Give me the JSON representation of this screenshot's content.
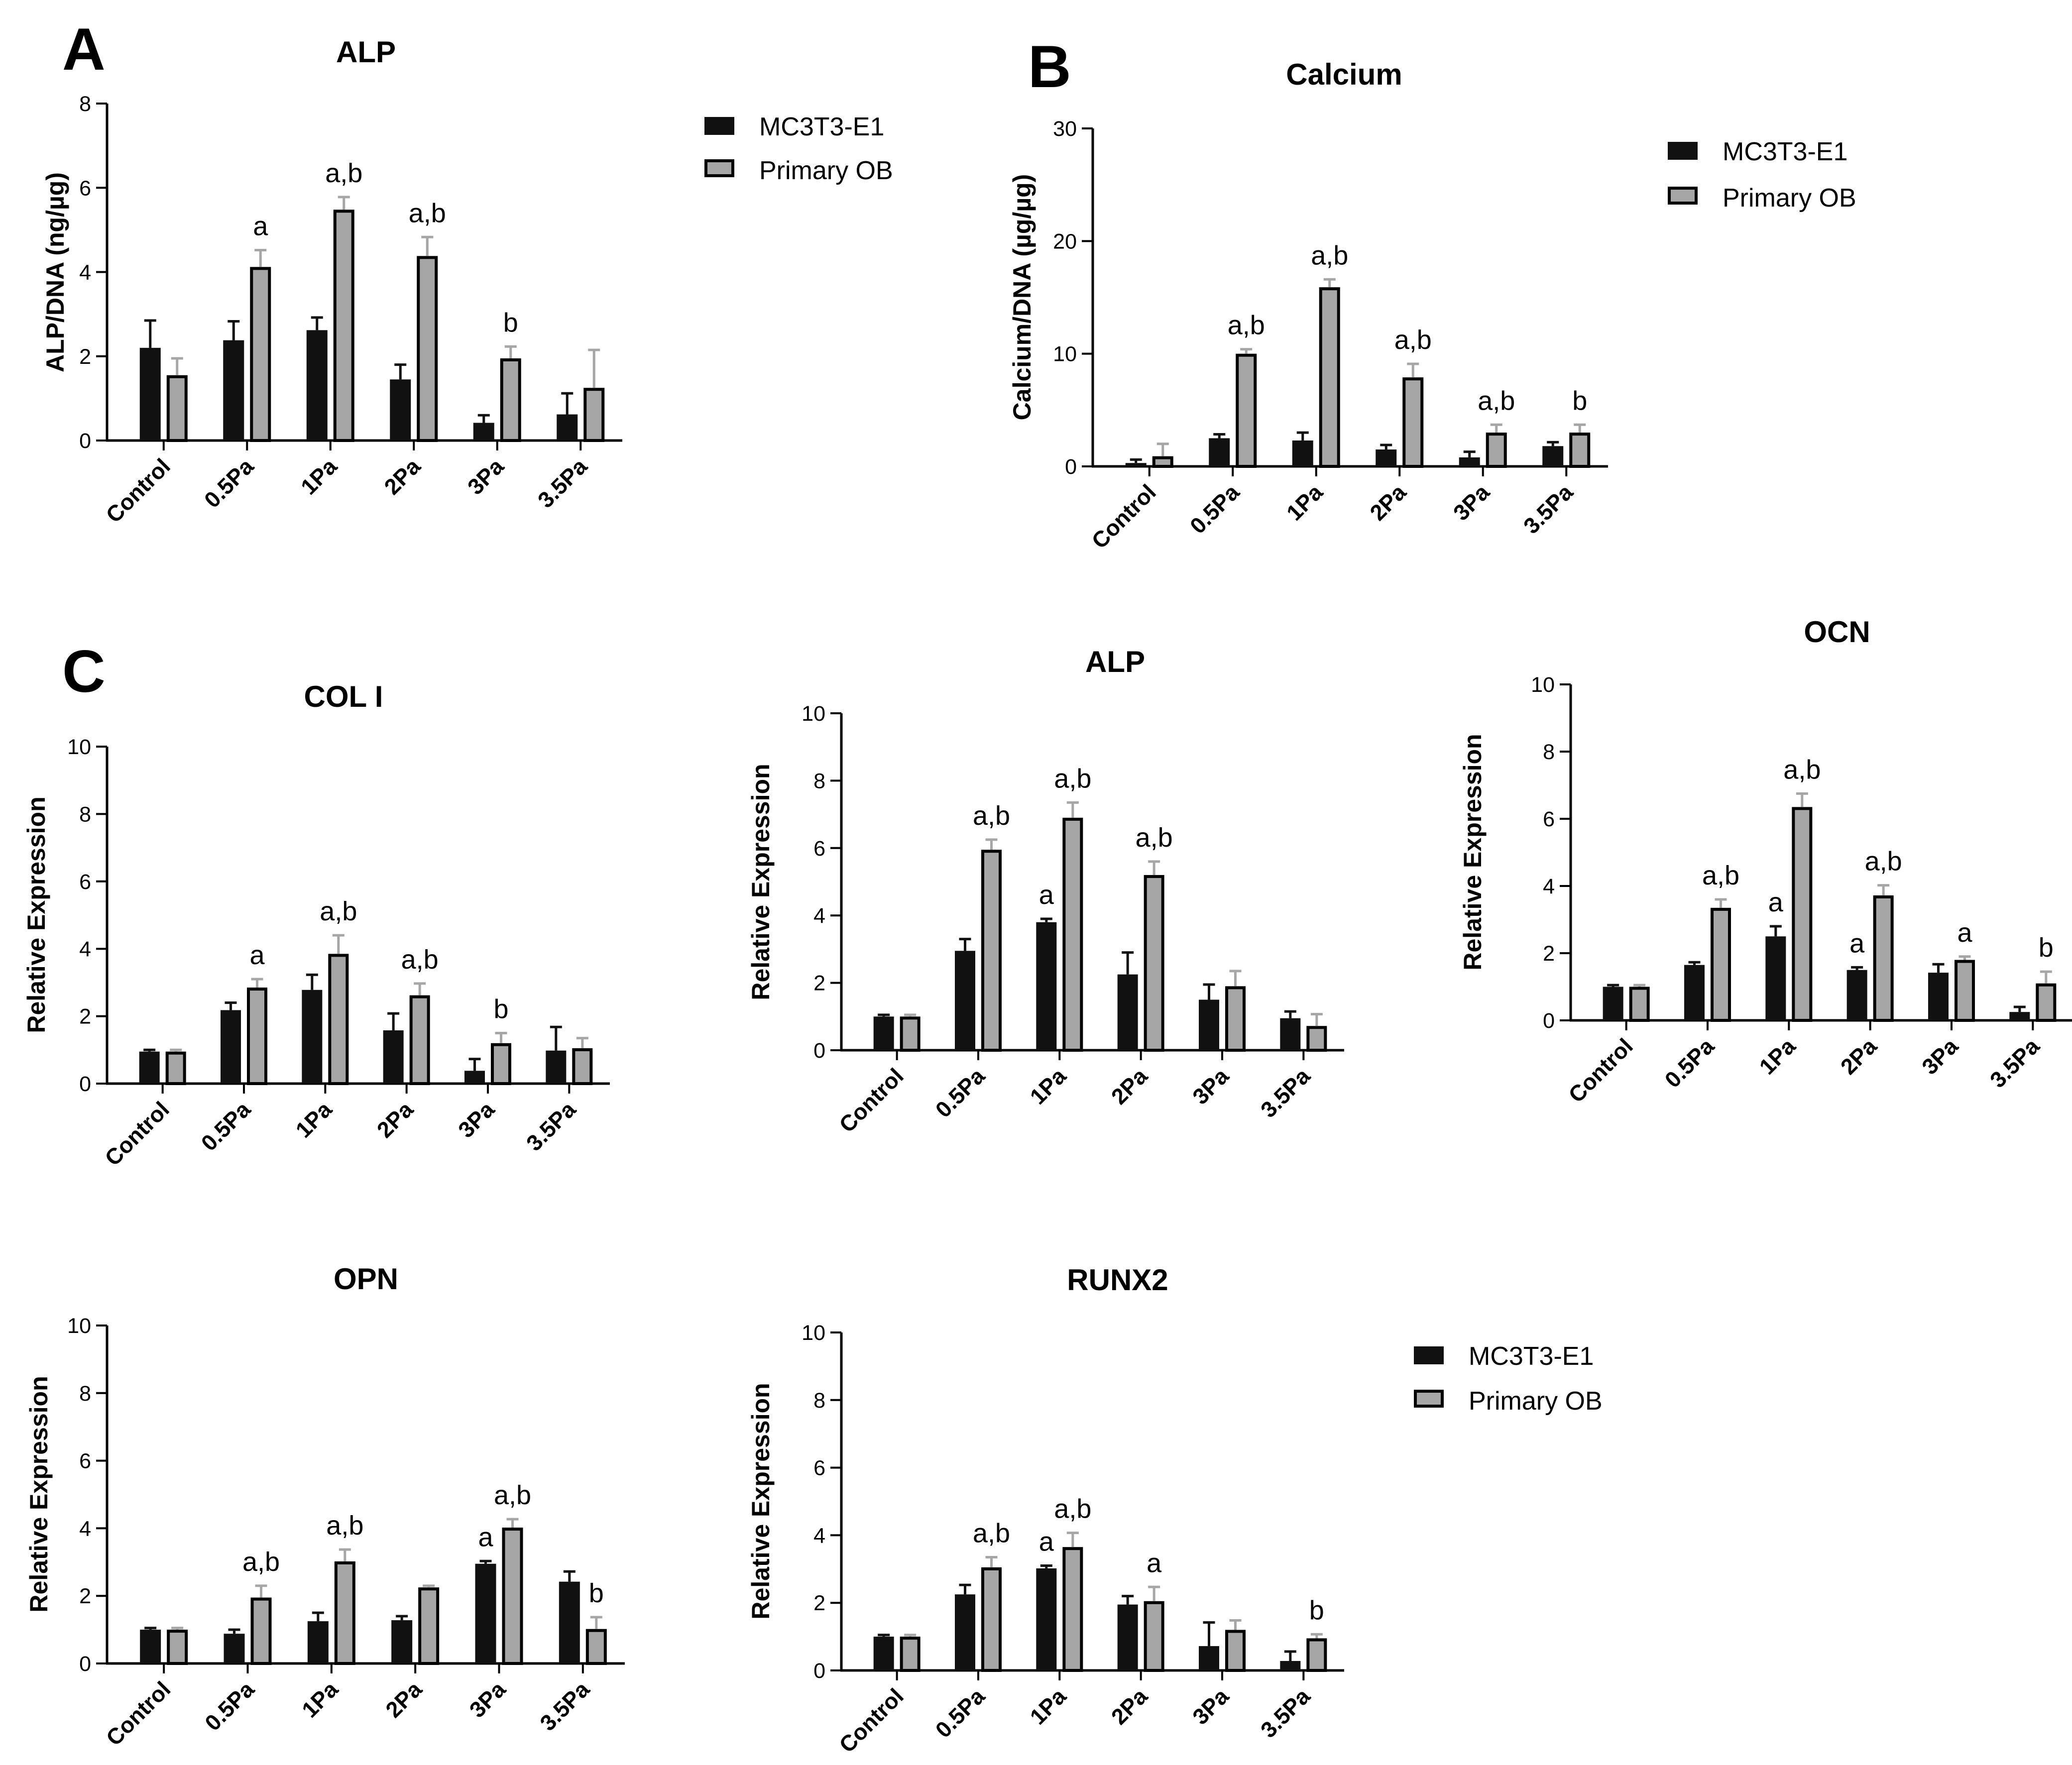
{
  "panel_letters": {
    "a": "A",
    "b": "B",
    "c": "C"
  },
  "legend": {
    "series1": "MC3T3-E1",
    "series2": "Primary OB",
    "colors": {
      "series1": "#111111",
      "series2": "#a6a6a6"
    }
  },
  "chart_data": [
    {
      "id": "alp_protein",
      "type": "bar",
      "title": "ALP",
      "ylabel": "ALP/DNA (ng/µg)",
      "categories": [
        "Control",
        "0.5Pa",
        "1Pa",
        "2Pa",
        "3Pa",
        "3.5Pa"
      ],
      "ylim": [
        0,
        8
      ],
      "yticks": [
        "0",
        "2",
        "4",
        "6",
        "8"
      ],
      "series": [
        {
          "name": "MC3T3-E1",
          "values": [
            2.2,
            2.38,
            2.62,
            1.45,
            0.42,
            0.62
          ],
          "errors": [
            0.65,
            0.45,
            0.3,
            0.35,
            0.18,
            0.5
          ]
        },
        {
          "name": "Primary OB",
          "values": [
            1.55,
            4.12,
            5.48,
            4.38,
            1.95,
            1.25
          ],
          "errors": [
            0.4,
            0.4,
            0.3,
            0.45,
            0.28,
            0.9
          ]
        }
      ],
      "annotations": [
        "",
        "a",
        "a,b",
        "a,b",
        "b",
        ""
      ]
    },
    {
      "id": "calcium",
      "type": "bar",
      "title": "Calcium",
      "ylabel": "Calcium/DNA (µg/µg)",
      "categories": [
        "Control",
        "0.5Pa",
        "1Pa",
        "2Pa",
        "3Pa",
        "3.5Pa"
      ],
      "ylim": [
        0,
        30
      ],
      "yticks": [
        "0",
        "10",
        "20",
        "30"
      ],
      "series": [
        {
          "name": "MC3T3-E1",
          "values": [
            0.3,
            2.5,
            2.3,
            1.5,
            0.8,
            1.8
          ],
          "errors": [
            0.3,
            0.35,
            0.7,
            0.4,
            0.5,
            0.35
          ]
        },
        {
          "name": "Primary OB",
          "values": [
            0.9,
            10.0,
            15.9,
            7.9,
            3.0,
            3.0
          ],
          "errors": [
            1.1,
            0.4,
            0.7,
            1.2,
            0.7,
            0.7
          ]
        }
      ],
      "annotations": [
        "",
        "a,b",
        "a,b",
        "a,b",
        "a,b",
        "b"
      ]
    },
    {
      "id": "col1",
      "type": "bar",
      "title": "COL I",
      "ylabel": "Relative Expression",
      "categories": [
        "Control",
        "0.5Pa",
        "1Pa",
        "2Pa",
        "3Pa",
        "3.5Pa"
      ],
      "ylim": [
        0,
        10
      ],
      "yticks": [
        "0",
        "2",
        "4",
        "6",
        "8",
        "10"
      ],
      "series": [
        {
          "name": "MC3T3-E1",
          "values": [
            0.95,
            2.18,
            2.78,
            1.58,
            0.38,
            0.98
          ],
          "errors": [
            0.05,
            0.22,
            0.45,
            0.5,
            0.35,
            0.7
          ]
        },
        {
          "name": "Primary OB",
          "values": [
            0.95,
            2.85,
            3.85,
            2.62,
            1.2,
            1.05
          ],
          "errors": [
            0.05,
            0.25,
            0.55,
            0.35,
            0.3,
            0.3
          ]
        }
      ],
      "annotations": [
        "",
        "a",
        "a,b",
        "a,b",
        "b",
        ""
      ]
    },
    {
      "id": "alp_expr",
      "type": "bar",
      "title": "ALP",
      "ylabel": "Relative Expression",
      "categories": [
        "Control",
        "0.5Pa",
        "1Pa",
        "2Pa",
        "3Pa",
        "3.5Pa"
      ],
      "ylim": [
        0,
        10
      ],
      "yticks": [
        "0",
        "2",
        "4",
        "6",
        "8",
        "10"
      ],
      "series": [
        {
          "name": "MC3T3-E1",
          "values": [
            1.0,
            2.95,
            3.8,
            2.25,
            1.5,
            0.95
          ],
          "errors": [
            0.05,
            0.35,
            0.1,
            0.65,
            0.45,
            0.2
          ]
        },
        {
          "name": "Primary OB",
          "values": [
            1.0,
            5.95,
            6.9,
            5.2,
            1.9,
            0.72
          ],
          "errors": [
            0.05,
            0.3,
            0.45,
            0.4,
            0.45,
            0.35
          ]
        }
      ],
      "annotations": [
        [
          "",
          ""
        ],
        [
          "",
          "a,b"
        ],
        [
          "a",
          "a,b"
        ],
        [
          "",
          "a,b"
        ],
        [
          "",
          ""
        ],
        [
          "",
          ""
        ]
      ]
    },
    {
      "id": "ocn",
      "type": "bar",
      "title": "OCN",
      "ylabel": "Relative Expression",
      "categories": [
        "Control",
        "0.5Pa",
        "1Pa",
        "2Pa",
        "3Pa",
        "3.5Pa"
      ],
      "ylim": [
        0,
        10
      ],
      "yticks": [
        "0",
        "2",
        "4",
        "6",
        "8",
        "10"
      ],
      "series": [
        {
          "name": "MC3T3-E1",
          "values": [
            1.0,
            1.65,
            2.5,
            1.5,
            1.42,
            0.25
          ],
          "errors": [
            0.05,
            0.08,
            0.3,
            0.08,
            0.25,
            0.15
          ]
        },
        {
          "name": "Primary OB",
          "values": [
            1.0,
            3.35,
            6.35,
            3.72,
            1.8,
            1.1
          ],
          "errors": [
            0.05,
            0.25,
            0.4,
            0.3,
            0.1,
            0.35
          ]
        }
      ],
      "annotations": [
        [
          "",
          ""
        ],
        [
          "",
          "a,b"
        ],
        [
          "a",
          "a,b"
        ],
        [
          "a",
          "a,b"
        ],
        [
          "",
          "a"
        ],
        [
          "",
          "b"
        ]
      ]
    },
    {
      "id": "opn",
      "type": "bar",
      "title": "OPN",
      "ylabel": "Relative Expression",
      "categories": [
        "Control",
        "0.5Pa",
        "1Pa",
        "2Pa",
        "3Pa",
        "3.5Pa"
      ],
      "ylim": [
        0,
        10
      ],
      "yticks": [
        "0",
        "2",
        "4",
        "6",
        "8",
        "10"
      ],
      "series": [
        {
          "name": "MC3T3-E1",
          "values": [
            1.0,
            0.88,
            1.25,
            1.28,
            2.95,
            2.42
          ],
          "errors": [
            0.05,
            0.12,
            0.25,
            0.12,
            0.08,
            0.3
          ]
        },
        {
          "name": "Primary OB",
          "values": [
            1.0,
            1.95,
            3.02,
            2.25,
            4.02,
            1.02
          ],
          "errors": [
            0.05,
            0.35,
            0.35,
            0.05,
            0.25,
            0.35
          ]
        }
      ],
      "annotations": [
        [
          "",
          ""
        ],
        [
          "",
          "a,b"
        ],
        [
          "",
          "a,b"
        ],
        [
          "",
          ""
        ],
        [
          "a",
          "a,b"
        ],
        [
          "",
          "b"
        ]
      ]
    },
    {
      "id": "runx2",
      "type": "bar",
      "title": "RUNX2",
      "ylabel": "Relative Expression",
      "categories": [
        "Control",
        "0.5Pa",
        "1Pa",
        "2Pa",
        "3Pa",
        "3.5Pa"
      ],
      "ylim": [
        0,
        10
      ],
      "yticks": [
        "0",
        "2",
        "4",
        "6",
        "8",
        "10"
      ],
      "series": [
        {
          "name": "MC3T3-E1",
          "values": [
            1.0,
            2.25,
            3.02,
            1.95,
            0.72,
            0.28
          ],
          "errors": [
            0.05,
            0.28,
            0.08,
            0.25,
            0.7,
            0.28
          ]
        },
        {
          "name": "Primary OB",
          "values": [
            1.0,
            3.05,
            3.65,
            2.05,
            1.2,
            0.95
          ],
          "errors": [
            0.05,
            0.3,
            0.42,
            0.42,
            0.28,
            0.12
          ]
        }
      ],
      "annotations": [
        [
          "",
          ""
        ],
        [
          "",
          "a,b"
        ],
        [
          "a",
          "a,b"
        ],
        [
          "",
          "a"
        ],
        [
          "",
          ""
        ],
        [
          "",
          "b"
        ]
      ]
    }
  ]
}
